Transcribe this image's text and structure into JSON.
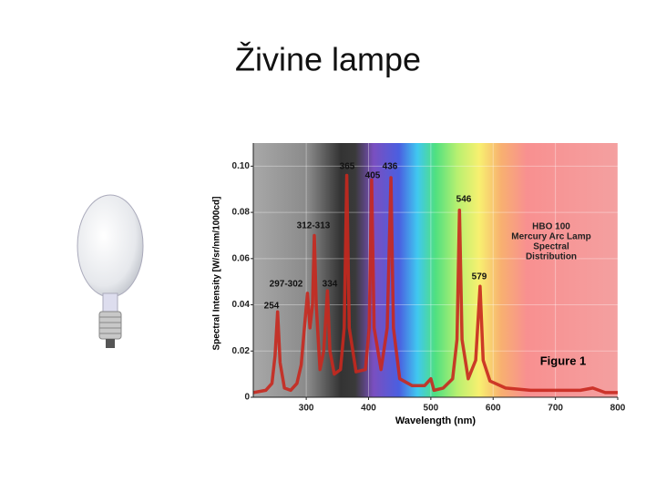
{
  "slide": {
    "title": "Živine lampe"
  },
  "chart_data": {
    "type": "line",
    "title": [
      "HBO 100",
      "Mercury Arc Lamp",
      "Spectral",
      "Distribution"
    ],
    "figure_label": "Figure 1",
    "x_label": "Wavelength (nm)",
    "y_label": "Spectral Intensity [W/sr/nm/1000cd]",
    "annotations": [
      "254",
      "297-302",
      "312-313",
      "334",
      "365",
      "405",
      "436",
      "546",
      "579"
    ],
    "color": "#c8281e",
    "x": [
      215,
      235,
      245,
      250,
      254,
      258,
      265,
      275,
      285,
      292,
      297,
      302,
      306,
      310,
      313,
      316,
      322,
      328,
      334,
      338,
      345,
      355,
      361,
      365,
      369,
      380,
      395,
      401,
      405,
      409,
      420,
      430,
      436,
      440,
      450,
      470,
      490,
      500,
      505,
      520,
      535,
      542,
      546,
      550,
      560,
      572,
      579,
      584,
      595,
      620,
      660,
      700,
      740,
      760,
      780,
      800
    ],
    "values": [
      0.002,
      0.003,
      0.006,
      0.018,
      0.037,
      0.015,
      0.004,
      0.003,
      0.006,
      0.014,
      0.03,
      0.045,
      0.03,
      0.04,
      0.07,
      0.04,
      0.012,
      0.02,
      0.046,
      0.02,
      0.01,
      0.012,
      0.03,
      0.096,
      0.03,
      0.011,
      0.012,
      0.03,
      0.094,
      0.03,
      0.012,
      0.03,
      0.095,
      0.03,
      0.008,
      0.005,
      0.005,
      0.008,
      0.003,
      0.004,
      0.008,
      0.025,
      0.081,
      0.025,
      0.008,
      0.016,
      0.048,
      0.016,
      0.007,
      0.004,
      0.003,
      0.003,
      0.003,
      0.004,
      0.002,
      0.002
    ],
    "xlim": [
      215,
      800
    ],
    "ylim": [
      0,
      0.11
    ],
    "xticks": [
      300,
      400,
      500,
      600,
      700,
      800
    ],
    "yticks": [
      0,
      0.02,
      0.04,
      0.06,
      {
        "value": 0.1,
        "label": "0.10"
      },
      0.08
    ],
    "grid": true
  }
}
